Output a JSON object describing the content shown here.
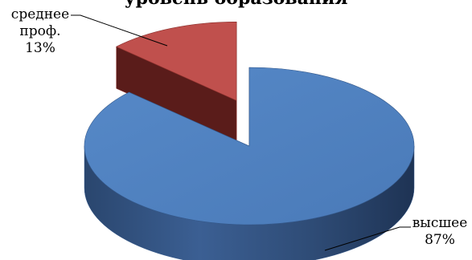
{
  "chart_data": {
    "type": "pie",
    "title": "уровень образования",
    "style": "3d-exploded",
    "slices": [
      {
        "label": "высшее",
        "value": 87,
        "value_label": "87%",
        "color": "#4f81bd"
      },
      {
        "label": "среднее проф.",
        "label_lines": [
          "среднее",
          "проф."
        ],
        "value": 13,
        "value_label": "13%",
        "color": "#c0504d"
      }
    ],
    "legend": "none",
    "data_labels": "outside-with-leader-lines"
  }
}
